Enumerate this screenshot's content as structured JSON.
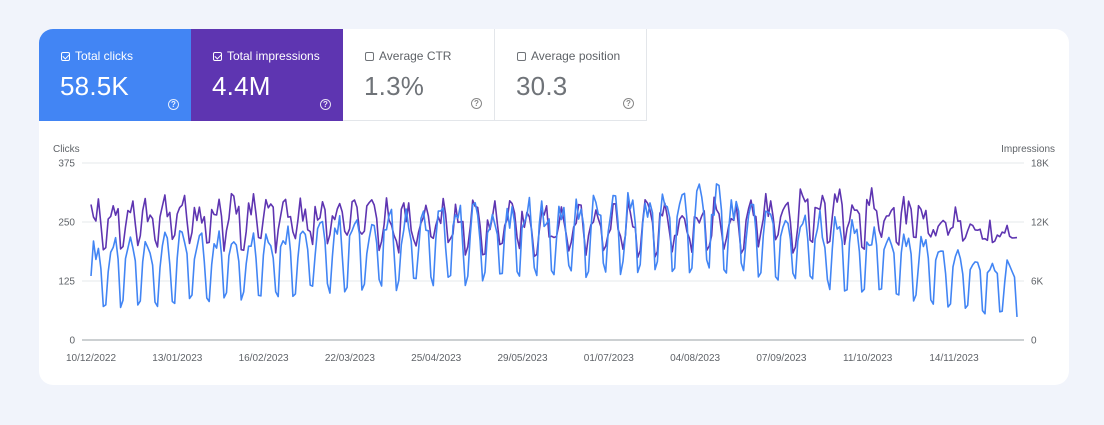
{
  "metrics": [
    {
      "label": "Total clicks",
      "value": "58.5K",
      "selected": true,
      "color": "#4285f4"
    },
    {
      "label": "Total impressions",
      "value": "4.4M",
      "selected": true,
      "color": "#5e35b1"
    },
    {
      "label": "Average CTR",
      "value": "1.3%",
      "selected": false
    },
    {
      "label": "Average position",
      "value": "30.3",
      "selected": false
    }
  ],
  "help_glyph": "?",
  "chart_data": {
    "type": "line",
    "left_axis_title": "Clicks",
    "right_axis_title": "Impressions",
    "left_ticks": [
      "375",
      "250",
      "125",
      "0"
    ],
    "right_ticks": [
      "18K",
      "12K",
      "6K",
      "0"
    ],
    "left_ylim": [
      0,
      375
    ],
    "right_ylim": [
      0,
      18000
    ],
    "x_labels": [
      "10/12/2022",
      "13/01/2023",
      "16/02/2023",
      "22/03/2023",
      "25/04/2023",
      "29/05/2023",
      "01/07/2023",
      "04/08/2023",
      "07/09/2023",
      "11/10/2023",
      "14/11/2023"
    ],
    "x_start": "2022-12-10",
    "x_end": "2023-12-21",
    "grid": true,
    "series": [
      {
        "name": "Clicks",
        "axis": "left",
        "color": "#4285f4",
        "weekday": [
          190,
          250,
          300,
          150
        ],
        "weekend": [
          70,
          120,
          160,
          50
        ],
        "amplitude_trend": [
          1.0,
          0.95,
          0.85,
          0.8
        ]
      },
      {
        "name": "Impressions",
        "axis": "right",
        "color": "#5e35b1",
        "weekday": [
          13500,
          13500,
          13000,
          12500,
          13000,
          14500,
          10500
        ],
        "weekend": [
          10000,
          10000,
          10000,
          9500,
          9500,
          10500,
          10000
        ]
      }
    ]
  }
}
